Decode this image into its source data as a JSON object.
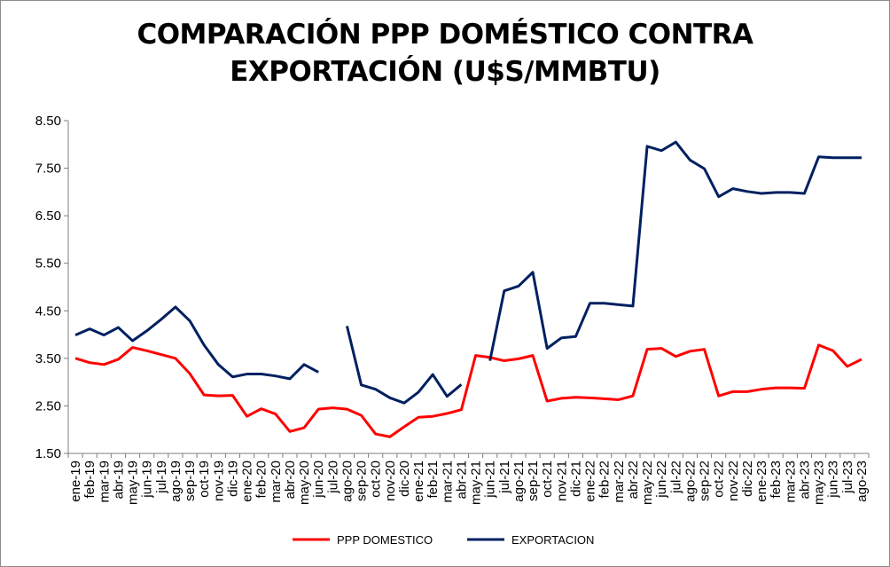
{
  "chart_data": {
    "type": "line",
    "title_line1": "COMPARACIÓN PPP DOMÉSTICO CONTRA",
    "title_line2": "EXPORTACIÓN (U$S/MMBTU)",
    "xlabel": "",
    "ylabel": "",
    "ylim": [
      1.5,
      8.5
    ],
    "yticks": [
      "1.50",
      "2.50",
      "3.50",
      "4.50",
      "5.50",
      "6.50",
      "7.50",
      "8.50"
    ],
    "grid": false,
    "legend_position": "bottom",
    "categories": [
      "ene-19",
      "feb-19",
      "mar-19",
      "abr-19",
      "may-19",
      "jun-19",
      "jul-19",
      "ago-19",
      "sep-19",
      "oct-19",
      "nov-19",
      "dic-19",
      "ene-20",
      "feb-20",
      "mar-20",
      "abr-20",
      "may-20",
      "jun-20",
      "jul-20",
      "ago-20",
      "sep-20",
      "oct-20",
      "nov-20",
      "dic-20",
      "ene-21",
      "feb-21",
      "mar-21",
      "abr-21",
      "may-21",
      "jun-21",
      "jul-21",
      "ago-21",
      "sep-21",
      "oct-21",
      "nov-21",
      "dic-21",
      "ene-22",
      "feb-22",
      "mar-22",
      "abr-22",
      "may-22",
      "jun-22",
      "jul-22",
      "ago-22",
      "sep-22",
      "oct-22",
      "nov-22",
      "dic-22",
      "ene-23",
      "feb-23",
      "mar-23",
      "abr-23",
      "may-23",
      "jun-23",
      "jul-23",
      "ago-23"
    ],
    "series": [
      {
        "name": "PPP DOMESTICO",
        "color": "#ff0000",
        "values": [
          3.5,
          3.41,
          3.37,
          3.48,
          3.73,
          3.66,
          3.58,
          3.5,
          3.18,
          2.73,
          2.71,
          2.72,
          2.28,
          2.44,
          2.33,
          1.96,
          2.04,
          2.43,
          2.46,
          2.43,
          2.3,
          1.91,
          1.85,
          2.06,
          2.26,
          2.28,
          2.34,
          2.42,
          3.56,
          3.52,
          3.45,
          3.49,
          3.56,
          2.6,
          2.66,
          2.68,
          2.67,
          2.65,
          2.63,
          2.71,
          3.69,
          3.71,
          3.54,
          3.65,
          3.69,
          2.71,
          2.8,
          2.8,
          2.85,
          2.88,
          2.88,
          2.87,
          3.78,
          3.66,
          3.33,
          3.48
        ]
      },
      {
        "name": "EXPORTACION",
        "color": "#002060",
        "values": [
          3.99,
          4.12,
          3.99,
          4.15,
          3.87,
          4.08,
          4.32,
          4.58,
          4.29,
          3.78,
          3.37,
          3.11,
          3.17,
          3.17,
          3.13,
          3.07,
          3.37,
          3.21,
          null,
          4.18,
          2.94,
          2.85,
          2.67,
          2.56,
          2.79,
          3.16,
          2.7,
          2.95,
          null,
          3.45,
          4.92,
          5.02,
          5.31,
          3.71,
          3.93,
          3.96,
          4.66,
          4.66,
          4.63,
          4.6,
          7.96,
          7.87,
          8.05,
          7.67,
          7.49,
          6.9,
          7.07,
          7.01,
          6.97,
          6.99,
          6.99,
          6.97,
          7.74,
          7.72,
          7.72,
          7.72
        ]
      }
    ]
  }
}
